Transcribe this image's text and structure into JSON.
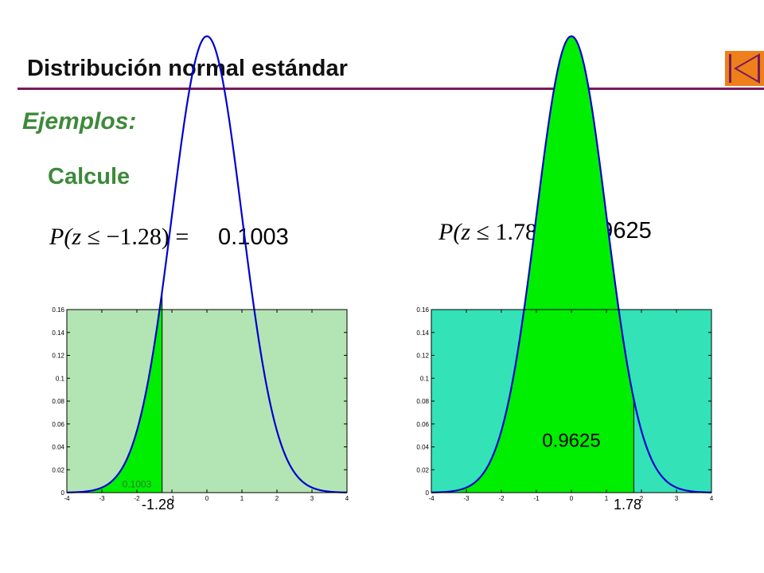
{
  "header": {
    "title": "Distribución normal estándar",
    "accent_color": "#7a1a5a",
    "back_button": {
      "icon": "first-page-icon",
      "color": "#ef7f1a"
    }
  },
  "section": {
    "heading": "Ejemplos:",
    "prompt": "Calcule"
  },
  "examples": [
    {
      "formula": {
        "prefix": "P(",
        "var": "z",
        "relation": " ≤ −1.28) ="
      },
      "result": "0.1003",
      "bound_label": "-1.28",
      "area_label": "0.1003"
    },
    {
      "formula": {
        "prefix": "P(",
        "var": "z",
        "relation": " ≤ 1.78) ="
      },
      "result": "0.9625",
      "bound_label": "1.78",
      "area_label": "0.9625"
    }
  ],
  "chart_data": [
    {
      "type": "area",
      "curve": "standard normal density",
      "xlim": [
        -4,
        4
      ],
      "ylim": [
        0,
        0.16
      ],
      "x_ticks": [
        "-4",
        "-3",
        "-2",
        "-1",
        "0",
        "1",
        "2",
        "3",
        "4"
      ],
      "y_ticks": [
        "0",
        "0.02",
        "0.04",
        "0.06",
        "0.08",
        "0.1",
        "0.12",
        "0.14",
        "0.16"
      ],
      "shade_from": -4,
      "shade_to": -1.28,
      "shaded_area": 0.1003,
      "colors": {
        "background": "#b3e4b3",
        "fill": "#00ee00",
        "curve": "#0000d0"
      }
    },
    {
      "type": "area",
      "curve": "standard normal density",
      "xlim": [
        -4,
        4
      ],
      "ylim": [
        0,
        0.16
      ],
      "x_ticks": [
        "-4",
        "-3",
        "-2",
        "-1",
        "0",
        "1",
        "2",
        "3",
        "4"
      ],
      "y_ticks": [
        "0",
        "0.02",
        "0.04",
        "0.06",
        "0.08",
        "0.1",
        "0.12",
        "0.14",
        "0.16"
      ],
      "shade_from": -4,
      "shade_to": 1.78,
      "shaded_area": 0.9625,
      "colors": {
        "background": "#33e2b6",
        "fill": "#00ee00",
        "curve": "#0000d0"
      }
    }
  ]
}
